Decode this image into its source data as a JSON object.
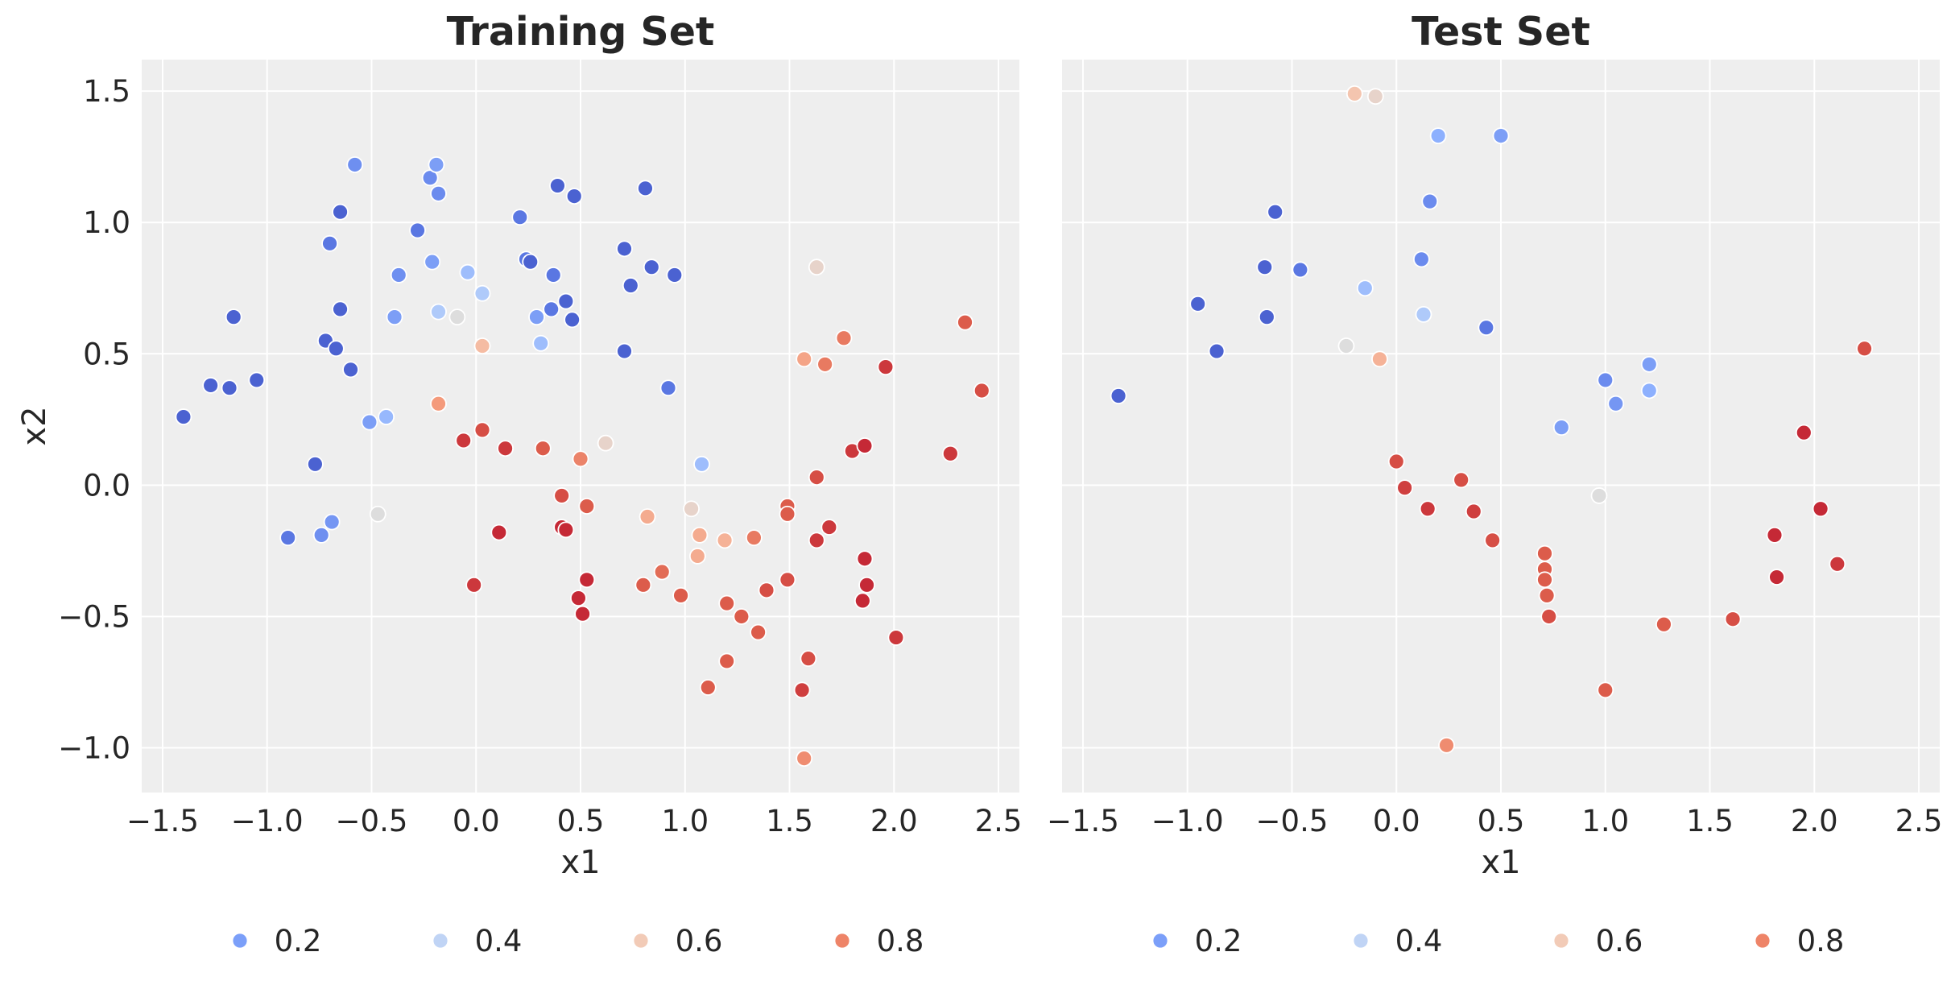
{
  "chart_data": [
    {
      "type": "scatter",
      "title": "Training Set",
      "xlabel": "x1",
      "ylabel": "x2",
      "xlim": [
        -1.6,
        2.6
      ],
      "ylim": [
        -1.17,
        1.62
      ],
      "xticks": [
        -1.5,
        -1.0,
        -0.5,
        0.0,
        0.5,
        1.0,
        1.5,
        2.0,
        2.5
      ],
      "yticks": [
        -1.0,
        -0.5,
        0.0,
        0.5,
        1.0,
        1.5
      ],
      "grid": true,
      "legend": {
        "placement": "bottom-center",
        "values": [
          0.2,
          0.4,
          0.6,
          0.8
        ]
      },
      "points": [
        {
          "x": -1.4,
          "y": 0.26,
          "p": 0.05
        },
        {
          "x": -1.27,
          "y": 0.38,
          "p": 0.05
        },
        {
          "x": -1.18,
          "y": 0.37,
          "p": 0.05
        },
        {
          "x": -1.16,
          "y": 0.64,
          "p": 0.05
        },
        {
          "x": -1.05,
          "y": 0.4,
          "p": 0.05
        },
        {
          "x": -0.9,
          "y": -0.2,
          "p": 0.1
        },
        {
          "x": -0.77,
          "y": 0.08,
          "p": 0.05
        },
        {
          "x": -0.74,
          "y": -0.19,
          "p": 0.16
        },
        {
          "x": -0.72,
          "y": 0.55,
          "p": 0.05
        },
        {
          "x": -0.7,
          "y": 0.92,
          "p": 0.1
        },
        {
          "x": -0.69,
          "y": -0.14,
          "p": 0.18
        },
        {
          "x": -0.67,
          "y": 0.52,
          "p": 0.05
        },
        {
          "x": -0.65,
          "y": 1.04,
          "p": 0.05
        },
        {
          "x": -0.65,
          "y": 0.67,
          "p": 0.05
        },
        {
          "x": -0.6,
          "y": 0.44,
          "p": 0.05
        },
        {
          "x": -0.58,
          "y": 1.22,
          "p": 0.16
        },
        {
          "x": -0.51,
          "y": 0.24,
          "p": 0.2
        },
        {
          "x": -0.47,
          "y": -0.11,
          "p": 0.5
        },
        {
          "x": -0.43,
          "y": 0.26,
          "p": 0.28
        },
        {
          "x": -0.39,
          "y": 0.64,
          "p": 0.2
        },
        {
          "x": -0.37,
          "y": 0.8,
          "p": 0.16
        },
        {
          "x": -0.28,
          "y": 0.97,
          "p": 0.1
        },
        {
          "x": -0.22,
          "y": 1.17,
          "p": 0.15
        },
        {
          "x": -0.21,
          "y": 0.85,
          "p": 0.2
        },
        {
          "x": -0.19,
          "y": 1.22,
          "p": 0.2
        },
        {
          "x": -0.18,
          "y": 1.11,
          "p": 0.15
        },
        {
          "x": -0.18,
          "y": 0.66,
          "p": 0.35
        },
        {
          "x": -0.18,
          "y": 0.31,
          "p": 0.75
        },
        {
          "x": -0.09,
          "y": 0.64,
          "p": 0.5
        },
        {
          "x": -0.06,
          "y": 0.17,
          "p": 0.93
        },
        {
          "x": -0.04,
          "y": 0.81,
          "p": 0.3
        },
        {
          "x": -0.01,
          "y": -0.38,
          "p": 0.93
        },
        {
          "x": 0.03,
          "y": 0.73,
          "p": 0.35
        },
        {
          "x": 0.03,
          "y": 0.53,
          "p": 0.65
        },
        {
          "x": 0.03,
          "y": 0.21,
          "p": 0.9
        },
        {
          "x": 0.11,
          "y": -0.18,
          "p": 0.95
        },
        {
          "x": 0.14,
          "y": 0.14,
          "p": 0.93
        },
        {
          "x": 0.21,
          "y": 1.02,
          "p": 0.1
        },
        {
          "x": 0.24,
          "y": 0.86,
          "p": 0.1
        },
        {
          "x": 0.26,
          "y": 0.85,
          "p": 0.05
        },
        {
          "x": 0.29,
          "y": 0.64,
          "p": 0.2
        },
        {
          "x": 0.31,
          "y": 0.54,
          "p": 0.3
        },
        {
          "x": 0.32,
          "y": 0.14,
          "p": 0.88
        },
        {
          "x": 0.36,
          "y": 0.67,
          "p": 0.1
        },
        {
          "x": 0.37,
          "y": 0.8,
          "p": 0.1
        },
        {
          "x": 0.39,
          "y": 1.14,
          "p": 0.05
        },
        {
          "x": 0.41,
          "y": -0.04,
          "p": 0.9
        },
        {
          "x": 0.41,
          "y": -0.16,
          "p": 0.95
        },
        {
          "x": 0.43,
          "y": -0.17,
          "p": 0.95
        },
        {
          "x": 0.43,
          "y": 0.7,
          "p": 0.05
        },
        {
          "x": 0.46,
          "y": 0.63,
          "p": 0.05
        },
        {
          "x": 0.47,
          "y": 1.1,
          "p": 0.05
        },
        {
          "x": 0.49,
          "y": -0.43,
          "p": 0.95
        },
        {
          "x": 0.5,
          "y": 0.1,
          "p": 0.8
        },
        {
          "x": 0.51,
          "y": -0.49,
          "p": 0.95
        },
        {
          "x": 0.53,
          "y": -0.08,
          "p": 0.88
        },
        {
          "x": 0.53,
          "y": -0.36,
          "p": 0.95
        },
        {
          "x": 0.62,
          "y": 0.16,
          "p": 0.55
        },
        {
          "x": 0.71,
          "y": 0.9,
          "p": 0.05
        },
        {
          "x": 0.71,
          "y": 0.51,
          "p": 0.05
        },
        {
          "x": 0.74,
          "y": 0.76,
          "p": 0.05
        },
        {
          "x": 0.8,
          "y": -0.38,
          "p": 0.88
        },
        {
          "x": 0.81,
          "y": 1.13,
          "p": 0.05
        },
        {
          "x": 0.82,
          "y": -0.12,
          "p": 0.7
        },
        {
          "x": 0.84,
          "y": 0.83,
          "p": 0.05
        },
        {
          "x": 0.89,
          "y": -0.33,
          "p": 0.85
        },
        {
          "x": 0.92,
          "y": 0.37,
          "p": 0.1
        },
        {
          "x": 0.95,
          "y": 0.8,
          "p": 0.05
        },
        {
          "x": 0.98,
          "y": -0.42,
          "p": 0.88
        },
        {
          "x": 1.03,
          "y": -0.09,
          "p": 0.55
        },
        {
          "x": 1.06,
          "y": -0.27,
          "p": 0.7
        },
        {
          "x": 1.07,
          "y": -0.19,
          "p": 0.7
        },
        {
          "x": 1.08,
          "y": 0.08,
          "p": 0.3
        },
        {
          "x": 1.11,
          "y": -0.77,
          "p": 0.88
        },
        {
          "x": 1.19,
          "y": -0.21,
          "p": 0.68
        },
        {
          "x": 1.2,
          "y": -0.45,
          "p": 0.88
        },
        {
          "x": 1.2,
          "y": -0.67,
          "p": 0.88
        },
        {
          "x": 1.27,
          "y": -0.5,
          "p": 0.88
        },
        {
          "x": 1.33,
          "y": -0.2,
          "p": 0.82
        },
        {
          "x": 1.35,
          "y": -0.56,
          "p": 0.88
        },
        {
          "x": 1.39,
          "y": -0.4,
          "p": 0.9
        },
        {
          "x": 1.49,
          "y": -0.08,
          "p": 0.88
        },
        {
          "x": 1.49,
          "y": -0.11,
          "p": 0.88
        },
        {
          "x": 1.49,
          "y": -0.36,
          "p": 0.9
        },
        {
          "x": 1.56,
          "y": -0.78,
          "p": 0.92
        },
        {
          "x": 1.57,
          "y": 0.48,
          "p": 0.72
        },
        {
          "x": 1.57,
          "y": -1.04,
          "p": 0.78
        },
        {
          "x": 1.59,
          "y": -0.66,
          "p": 0.9
        },
        {
          "x": 1.63,
          "y": 0.83,
          "p": 0.55
        },
        {
          "x": 1.63,
          "y": 0.03,
          "p": 0.9
        },
        {
          "x": 1.63,
          "y": -0.21,
          "p": 0.93
        },
        {
          "x": 1.67,
          "y": 0.46,
          "p": 0.82
        },
        {
          "x": 1.69,
          "y": -0.16,
          "p": 0.93
        },
        {
          "x": 1.76,
          "y": 0.56,
          "p": 0.82
        },
        {
          "x": 1.8,
          "y": 0.13,
          "p": 0.93
        },
        {
          "x": 1.85,
          "y": -0.44,
          "p": 0.95
        },
        {
          "x": 1.86,
          "y": 0.15,
          "p": 0.95
        },
        {
          "x": 1.86,
          "y": -0.28,
          "p": 0.95
        },
        {
          "x": 1.87,
          "y": -0.38,
          "p": 0.95
        },
        {
          "x": 1.96,
          "y": 0.45,
          "p": 0.93
        },
        {
          "x": 2.01,
          "y": -0.58,
          "p": 0.93
        },
        {
          "x": 2.27,
          "y": 0.12,
          "p": 0.93
        },
        {
          "x": 2.34,
          "y": 0.62,
          "p": 0.88
        },
        {
          "x": 2.42,
          "y": 0.36,
          "p": 0.9
        }
      ]
    },
    {
      "type": "scatter",
      "title": "Test Set",
      "xlabel": "x1",
      "xlim": [
        -1.6,
        2.6
      ],
      "ylim": [
        -1.17,
        1.62
      ],
      "xticks": [
        -1.5,
        -1.0,
        -0.5,
        0.0,
        0.5,
        1.0,
        1.5,
        2.0,
        2.5
      ],
      "yticks": [
        -1.0,
        -0.5,
        0.0,
        0.5,
        1.0,
        1.5
      ],
      "grid": true,
      "legend": {
        "placement": "bottom-center",
        "values": [
          0.2,
          0.4,
          0.6,
          0.8
        ]
      },
      "points": [
        {
          "x": -1.33,
          "y": 0.34,
          "p": 0.05
        },
        {
          "x": -0.95,
          "y": 0.69,
          "p": 0.05
        },
        {
          "x": -0.86,
          "y": 0.51,
          "p": 0.05
        },
        {
          "x": -0.63,
          "y": 0.83,
          "p": 0.05
        },
        {
          "x": -0.62,
          "y": 0.64,
          "p": 0.05
        },
        {
          "x": -0.58,
          "y": 1.04,
          "p": 0.05
        },
        {
          "x": -0.46,
          "y": 0.82,
          "p": 0.1
        },
        {
          "x": -0.24,
          "y": 0.53,
          "p": 0.5
        },
        {
          "x": -0.2,
          "y": 1.49,
          "p": 0.62
        },
        {
          "x": -0.15,
          "y": 0.75,
          "p": 0.3
        },
        {
          "x": -0.1,
          "y": 1.48,
          "p": 0.55
        },
        {
          "x": -0.08,
          "y": 0.48,
          "p": 0.68
        },
        {
          "x": 0.0,
          "y": 0.09,
          "p": 0.9
        },
        {
          "x": 0.04,
          "y": -0.01,
          "p": 0.92
        },
        {
          "x": 0.12,
          "y": 0.86,
          "p": 0.15
        },
        {
          "x": 0.13,
          "y": 0.65,
          "p": 0.35
        },
        {
          "x": 0.15,
          "y": -0.09,
          "p": 0.93
        },
        {
          "x": 0.16,
          "y": 1.08,
          "p": 0.15
        },
        {
          "x": 0.2,
          "y": 1.33,
          "p": 0.25
        },
        {
          "x": 0.24,
          "y": -0.99,
          "p": 0.78
        },
        {
          "x": 0.31,
          "y": 0.02,
          "p": 0.9
        },
        {
          "x": 0.37,
          "y": -0.1,
          "p": 0.92
        },
        {
          "x": 0.43,
          "y": 0.6,
          "p": 0.1
        },
        {
          "x": 0.46,
          "y": -0.21,
          "p": 0.9
        },
        {
          "x": 0.5,
          "y": 1.33,
          "p": 0.2
        },
        {
          "x": 0.71,
          "y": -0.26,
          "p": 0.88
        },
        {
          "x": 0.71,
          "y": -0.32,
          "p": 0.88
        },
        {
          "x": 0.71,
          "y": -0.36,
          "p": 0.88
        },
        {
          "x": 0.72,
          "y": -0.42,
          "p": 0.88
        },
        {
          "x": 0.73,
          "y": -0.5,
          "p": 0.9
        },
        {
          "x": 0.79,
          "y": 0.22,
          "p": 0.2
        },
        {
          "x": 0.97,
          "y": -0.04,
          "p": 0.5
        },
        {
          "x": 1.0,
          "y": 0.4,
          "p": 0.15
        },
        {
          "x": 1.0,
          "y": -0.78,
          "p": 0.88
        },
        {
          "x": 1.05,
          "y": 0.31,
          "p": 0.18
        },
        {
          "x": 1.21,
          "y": 0.46,
          "p": 0.2
        },
        {
          "x": 1.21,
          "y": 0.36,
          "p": 0.25
        },
        {
          "x": 1.28,
          "y": -0.53,
          "p": 0.88
        },
        {
          "x": 1.61,
          "y": -0.51,
          "p": 0.9
        },
        {
          "x": 1.81,
          "y": -0.19,
          "p": 0.95
        },
        {
          "x": 1.82,
          "y": -0.35,
          "p": 0.95
        },
        {
          "x": 1.95,
          "y": 0.2,
          "p": 0.95
        },
        {
          "x": 2.03,
          "y": -0.09,
          "p": 0.95
        },
        {
          "x": 2.11,
          "y": -0.3,
          "p": 0.93
        },
        {
          "x": 2.24,
          "y": 0.52,
          "p": 0.9
        }
      ]
    }
  ],
  "colors": {
    "panel_bg": "#eeeeee",
    "grid": "#ffffff",
    "text": "#262626",
    "colormap": "coolwarm",
    "legend_swatches": [
      "#7b9ff9",
      "#c0d4f5",
      "#f2cbb7",
      "#ee8468"
    ]
  }
}
